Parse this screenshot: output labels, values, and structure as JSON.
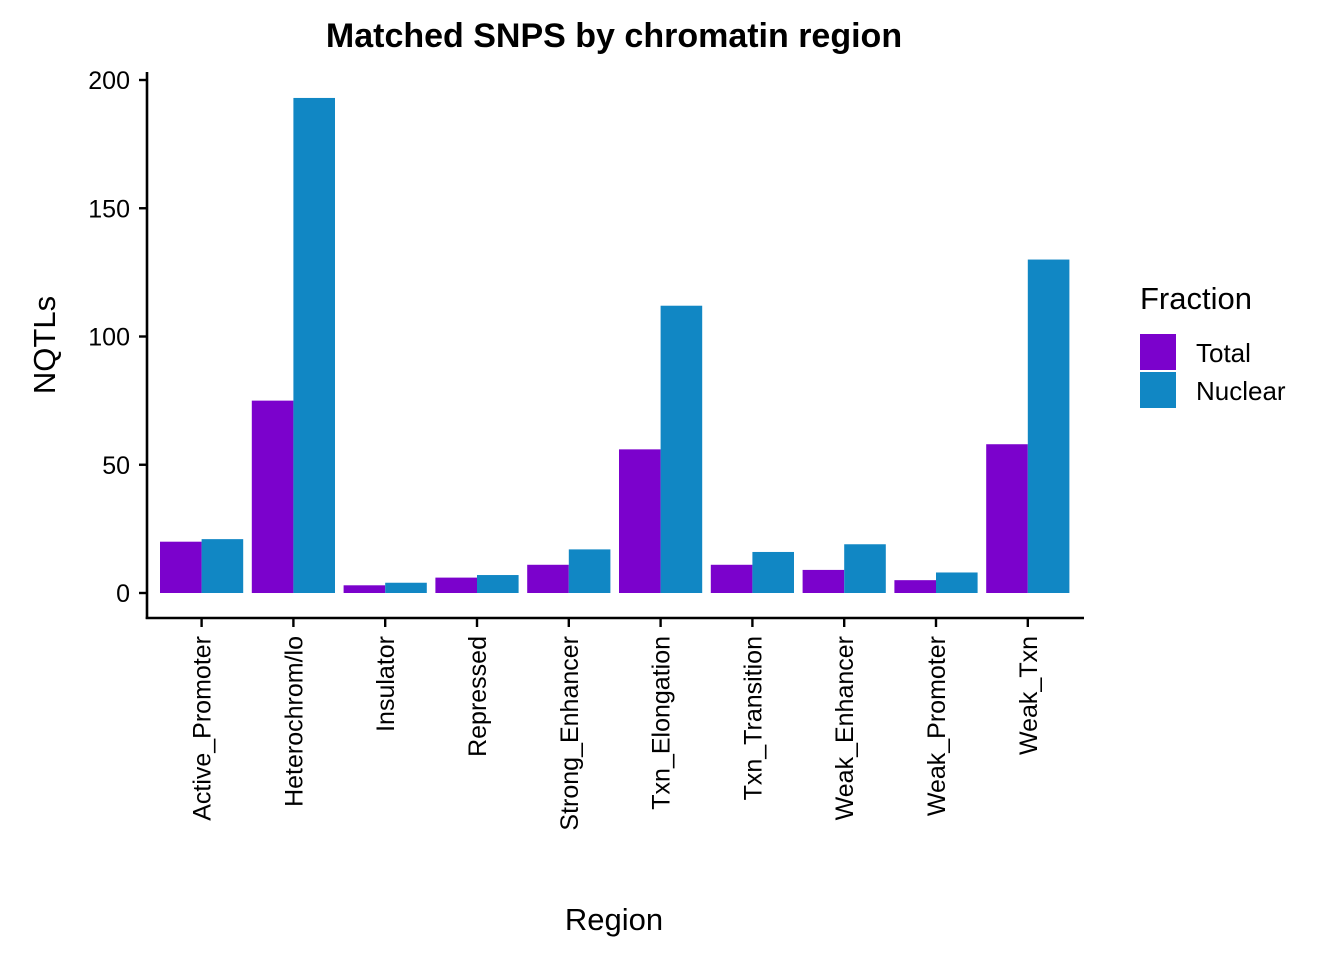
{
  "chart_data": {
    "type": "bar",
    "title": "Matched SNPS by chromatin region",
    "xlabel": "Region",
    "ylabel": "NQTLs",
    "ylim": [
      -10,
      202
    ],
    "yticks": [
      0,
      50,
      100,
      150,
      200
    ],
    "grid": false,
    "legend_position": "right",
    "legend_title": "Fraction",
    "categories": [
      "Active_Promoter",
      "Heterochrom/lo",
      "Insulator",
      "Repressed",
      "Strong_Enhancer",
      "Txn_Elongation",
      "Txn_Transition",
      "Weak_Enhancer",
      "Weak_Promoter",
      "Weak_Txn"
    ],
    "series": [
      {
        "name": "Total",
        "color": "#7B02CC",
        "values": [
          20,
          75,
          3,
          6,
          11,
          56,
          11,
          9,
          5,
          58
        ]
      },
      {
        "name": "Nuclear",
        "color": "#1187C4",
        "values": [
          21,
          193,
          4,
          7,
          17,
          112,
          16,
          19,
          8,
          130
        ]
      }
    ]
  }
}
